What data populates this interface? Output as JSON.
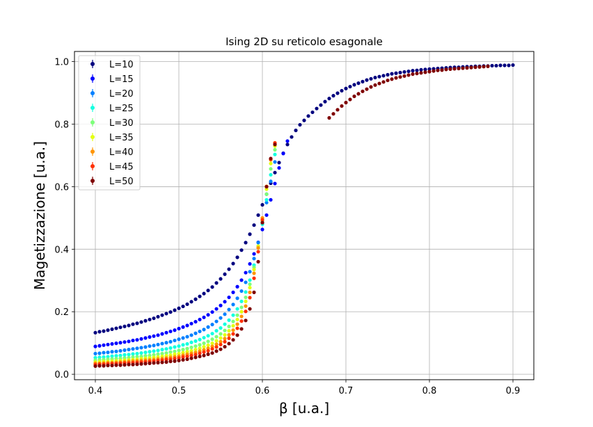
{
  "chart_data": {
    "type": "scatter",
    "title": "Ising 2D su reticolo esagonale",
    "xlabel": "β [u.a.]",
    "ylabel": "Magetizzazione [u.a.]",
    "xlim": [
      0.375,
      0.925
    ],
    "ylim": [
      -0.0175,
      1.0325
    ],
    "xticks": [
      0.4,
      0.5,
      0.6,
      0.7,
      0.8,
      0.9
    ],
    "xtick_labels": [
      "0.4",
      "0.5",
      "0.6",
      "0.7",
      "0.8",
      "0.9"
    ],
    "yticks": [
      0.0,
      0.2,
      0.4,
      0.6,
      0.8,
      1.0
    ],
    "ytick_labels": [
      "0.0",
      "0.2",
      "0.4",
      "0.6",
      "0.8",
      "1.0"
    ],
    "grid": true,
    "legend_position": "top-left",
    "x": {
      "start": 0.4,
      "end": 0.9,
      "count": 101
    },
    "common_tail": {
      "x_from": 0.68,
      "values": [
        0.82,
        0.833,
        0.846,
        0.858,
        0.869,
        0.879,
        0.889,
        0.897,
        0.905,
        0.912,
        0.919,
        0.925,
        0.93,
        0.935,
        0.94,
        0.944,
        0.948,
        0.951,
        0.954,
        0.957,
        0.96,
        0.962,
        0.964,
        0.966,
        0.968,
        0.97,
        0.972,
        0.973,
        0.975,
        0.976,
        0.977,
        0.978,
        0.979,
        0.98,
        0.981,
        0.982,
        0.983,
        0.984,
        0.985
      ]
    },
    "series": [
      {
        "name": "L=10",
        "color": "#00007f",
        "values": [
          0.133,
          0.136,
          0.138,
          0.141,
          0.144,
          0.147,
          0.15,
          0.153,
          0.156,
          0.16,
          0.163,
          0.167,
          0.171,
          0.175,
          0.179,
          0.184,
          0.189,
          0.194,
          0.199,
          0.205,
          0.211,
          0.217,
          0.224,
          0.232,
          0.24,
          0.249,
          0.258,
          0.268,
          0.279,
          0.292,
          0.305,
          0.32,
          0.336,
          0.354,
          0.374,
          0.397,
          0.421,
          0.448,
          0.477,
          0.509,
          0.542,
          0.576,
          0.611,
          0.645,
          0.677,
          0.707,
          0.735,
          0.759,
          0.78,
          0.798,
          0.812,
          0.826,
          0.838,
          0.85,
          0.861,
          0.872,
          0.882,
          0.891,
          0.899,
          0.907,
          0.914,
          0.92,
          0.926,
          0.931,
          0.936,
          0.941,
          0.945,
          0.949,
          0.952,
          0.955,
          0.958,
          0.961,
          0.963,
          0.965,
          0.967,
          0.969,
          0.971,
          0.972,
          0.974,
          0.975,
          0.976,
          0.977,
          0.978,
          0.979,
          0.98,
          0.981,
          0.982,
          0.982,
          0.983,
          0.984,
          0.984,
          0.985,
          0.985,
          0.986,
          0.986,
          0.987,
          0.987,
          0.988,
          0.988,
          0.988,
          0.989
        ]
      },
      {
        "name": "L=15",
        "color": "#0000ff",
        "values": [
          0.089,
          0.091,
          0.093,
          0.095,
          0.097,
          0.099,
          0.101,
          0.103,
          0.105,
          0.108,
          0.11,
          0.113,
          0.116,
          0.119,
          0.122,
          0.125,
          0.129,
          0.133,
          0.137,
          0.141,
          0.146,
          0.151,
          0.156,
          0.162,
          0.168,
          0.175,
          0.182,
          0.19,
          0.199,
          0.209,
          0.22,
          0.232,
          0.246,
          0.262,
          0.28,
          0.301,
          0.325,
          0.353,
          0.385,
          0.422,
          0.463,
          0.509,
          0.558,
          0.61,
          0.66,
          0.706,
          0.746
        ]
      },
      {
        "name": "L=20",
        "color": "#0080ff",
        "values": [
          0.066,
          0.067,
          0.069,
          0.07,
          0.072,
          0.073,
          0.075,
          0.077,
          0.079,
          0.081,
          0.083,
          0.085,
          0.087,
          0.09,
          0.092,
          0.095,
          0.098,
          0.101,
          0.104,
          0.108,
          0.112,
          0.116,
          0.12,
          0.125,
          0.131,
          0.137,
          0.143,
          0.151,
          0.159,
          0.169,
          0.18,
          0.192,
          0.207,
          0.223,
          0.243,
          0.266,
          0.294,
          0.328,
          0.37,
          0.421,
          0.482,
          0.549,
          0.617,
          0.679
        ]
      },
      {
        "name": "L=25",
        "color": "#15ffe1",
        "values": [
          0.053,
          0.054,
          0.055,
          0.056,
          0.058,
          0.059,
          0.06,
          0.062,
          0.063,
          0.065,
          0.066,
          0.068,
          0.07,
          0.072,
          0.074,
          0.076,
          0.079,
          0.081,
          0.084,
          0.087,
          0.09,
          0.094,
          0.097,
          0.102,
          0.106,
          0.111,
          0.117,
          0.123,
          0.13,
          0.139,
          0.148,
          0.16,
          0.173,
          0.189,
          0.209,
          0.233,
          0.263,
          0.301,
          0.349,
          0.409,
          0.48,
          0.558,
          0.638,
          0.703
        ]
      },
      {
        "name": "L=30",
        "color": "#7dff7a",
        "values": [
          0.045,
          0.046,
          0.047,
          0.048,
          0.049,
          0.05,
          0.051,
          0.052,
          0.053,
          0.055,
          0.056,
          0.057,
          0.059,
          0.06,
          0.062,
          0.064,
          0.066,
          0.068,
          0.071,
          0.073,
          0.076,
          0.079,
          0.082,
          0.086,
          0.09,
          0.094,
          0.099,
          0.105,
          0.112,
          0.12,
          0.129,
          0.14,
          0.153,
          0.169,
          0.189,
          0.214,
          0.246,
          0.288,
          0.342,
          0.41,
          0.49,
          0.576,
          0.657,
          0.718
        ]
      },
      {
        "name": "L=35",
        "color": "#e4ff13",
        "values": [
          0.039,
          0.04,
          0.041,
          0.041,
          0.042,
          0.043,
          0.044,
          0.045,
          0.046,
          0.047,
          0.048,
          0.05,
          0.051,
          0.052,
          0.054,
          0.055,
          0.057,
          0.059,
          0.061,
          0.064,
          0.066,
          0.069,
          0.072,
          0.075,
          0.079,
          0.083,
          0.088,
          0.093,
          0.099,
          0.107,
          0.116,
          0.126,
          0.139,
          0.155,
          0.175,
          0.2,
          0.233,
          0.277,
          0.335,
          0.41,
          0.499,
          0.592,
          0.674,
          0.73
        ]
      },
      {
        "name": "L=40",
        "color": "#ff9400",
        "values": [
          0.035,
          0.035,
          0.036,
          0.037,
          0.037,
          0.038,
          0.039,
          0.04,
          0.041,
          0.042,
          0.043,
          0.044,
          0.045,
          0.046,
          0.047,
          0.049,
          0.05,
          0.052,
          0.054,
          0.056,
          0.058,
          0.061,
          0.064,
          0.067,
          0.07,
          0.074,
          0.078,
          0.083,
          0.089,
          0.096,
          0.104,
          0.114,
          0.126,
          0.141,
          0.16,
          0.185,
          0.218,
          0.262,
          0.323,
          0.404,
          0.5,
          0.601,
          0.686,
          0.74
        ]
      },
      {
        "name": "L=45",
        "color": "#ff3000",
        "values": [
          0.031,
          0.032,
          0.032,
          0.033,
          0.034,
          0.034,
          0.035,
          0.036,
          0.036,
          0.037,
          0.038,
          0.039,
          0.04,
          0.041,
          0.042,
          0.044,
          0.045,
          0.047,
          0.048,
          0.05,
          0.052,
          0.055,
          0.057,
          0.06,
          0.063,
          0.067,
          0.071,
          0.075,
          0.081,
          0.087,
          0.095,
          0.104,
          0.115,
          0.129,
          0.147,
          0.17,
          0.201,
          0.245,
          0.307,
          0.392,
          0.494,
          0.6,
          0.688,
          0.74
        ]
      },
      {
        "name": "L=50",
        "color": "#7f0000",
        "values": [
          0.026,
          0.027,
          0.027,
          0.028,
          0.028,
          0.029,
          0.029,
          0.03,
          0.031,
          0.031,
          0.032,
          0.033,
          0.034,
          0.035,
          0.036,
          0.037,
          0.038,
          0.039,
          0.041,
          0.042,
          0.044,
          0.046,
          0.048,
          0.051,
          0.054,
          0.057,
          0.06,
          0.064,
          0.068,
          0.074,
          0.08,
          0.088,
          0.098,
          0.11,
          0.125,
          0.145,
          0.172,
          0.209,
          0.262,
          0.36,
          0.485,
          0.6,
          0.69,
          0.735
        ]
      }
    ]
  }
}
